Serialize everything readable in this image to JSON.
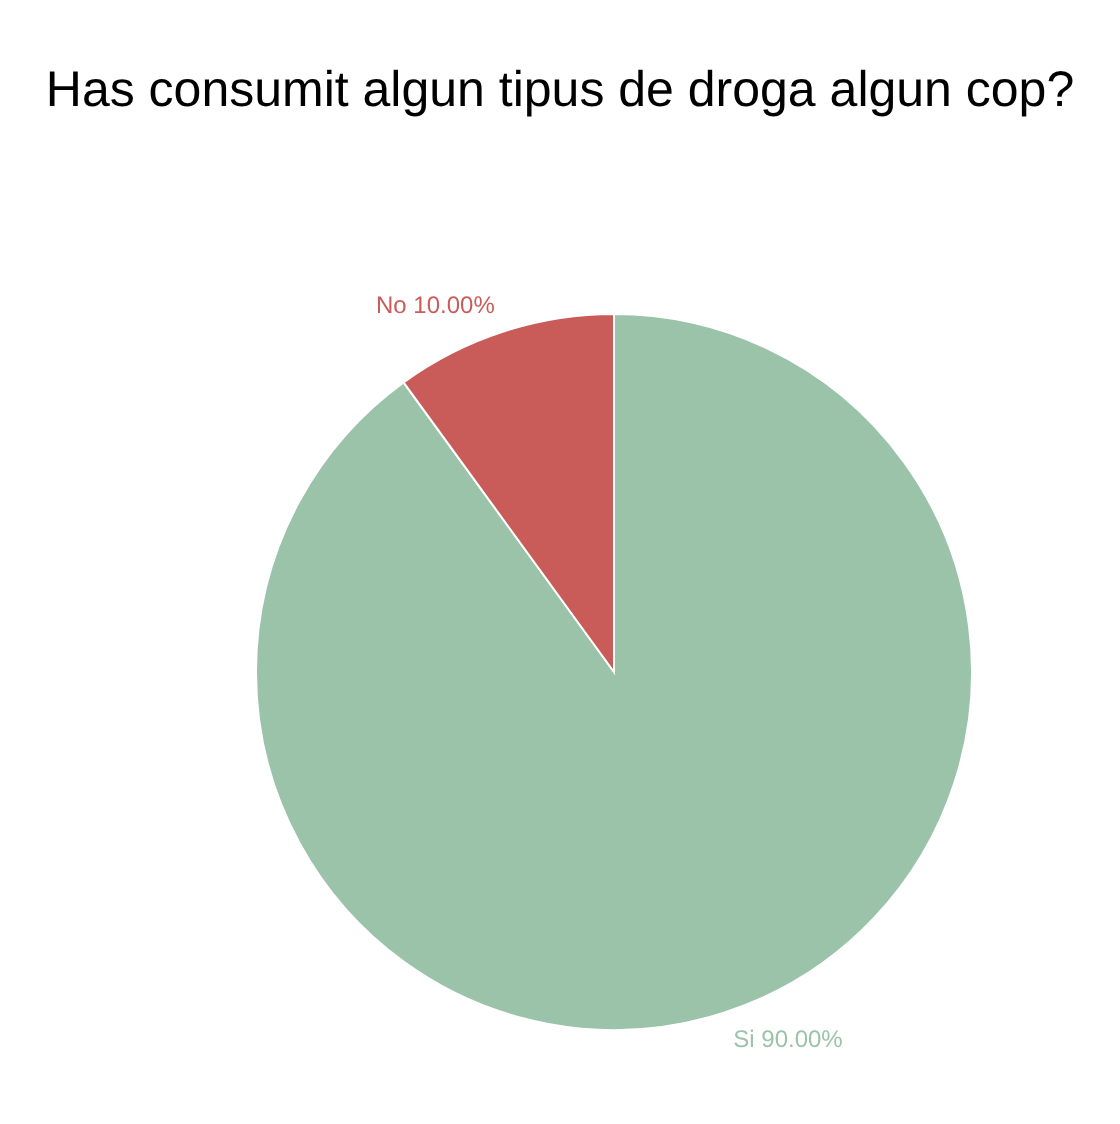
{
  "chart_data": {
    "type": "pie",
    "title": "Has consumit algun tipus de droga algun cop?",
    "categories": [
      "Si",
      "No"
    ],
    "values": [
      90,
      10
    ],
    "colors": [
      "#9bc3a9",
      "#c95c59"
    ],
    "value_labels": [
      "90.00%",
      "10.00%"
    ]
  }
}
